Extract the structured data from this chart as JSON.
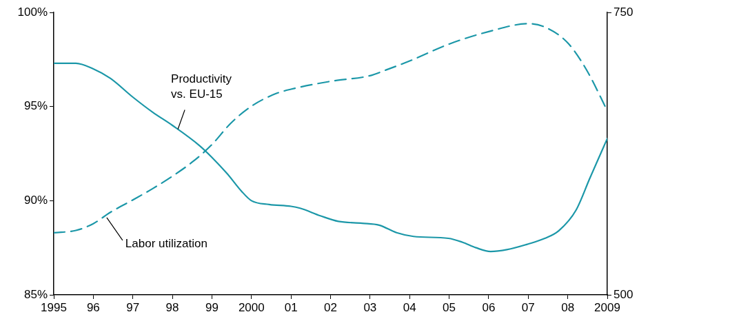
{
  "chart_data": {
    "type": "line",
    "xlim": [
      1995,
      2009
    ],
    "xticks": [
      1995,
      {
        "value": 1996,
        "label": "96"
      },
      {
        "value": 1997,
        "label": "97"
      },
      {
        "value": 1998,
        "label": "98"
      },
      {
        "value": 1999,
        "label": "99"
      },
      2000,
      {
        "value": 2001,
        "label": "01"
      },
      {
        "value": 2002,
        "label": "02"
      },
      {
        "value": 2003,
        "label": "03"
      },
      {
        "value": 2004,
        "label": "04"
      },
      {
        "value": 2005,
        "label": "05"
      },
      {
        "value": 2006,
        "label": "06"
      },
      {
        "value": 2007,
        "label": "07"
      },
      {
        "value": 2008,
        "label": "08"
      },
      2009
    ],
    "ylim": [
      85,
      100
    ],
    "yticks": [
      {
        "value": 85,
        "label": "85%"
      },
      {
        "value": 90,
        "label": "90%"
      },
      {
        "value": 95,
        "label": "95%"
      },
      {
        "value": 100,
        "label": "100%"
      }
    ],
    "y2lim": [
      500,
      750
    ],
    "y2ticks": [
      500,
      750
    ],
    "grid": false,
    "legend": false,
    "marker": "none",
    "series": [
      {
        "color": "#1b97a8",
        "line_style": "solid",
        "axis": "y",
        "x": [
          1995,
          1995.56,
          1996,
          1996.43,
          1997,
          1997.5,
          1998,
          1998.7,
          1999,
          1999.4,
          1999.75,
          2000,
          2000.45,
          2001,
          2001.23,
          2001.74,
          2002.2,
          2002.8,
          2003.23,
          2003.67,
          2004.1,
          2004.98,
          2005.33,
          2005.68,
          2006.05,
          2006.46,
          2007,
          2007.42,
          2007.77,
          2008.21,
          2008.56,
          2009
        ],
        "values": [
          97.3,
          97.3,
          97.0,
          96.5,
          95.5,
          94.7,
          94.0,
          92.9,
          92.3,
          91.4,
          90.5,
          90.0,
          89.8,
          89.7,
          89.6,
          89.2,
          88.9,
          88.8,
          88.7,
          88.3,
          88.1,
          88.0,
          87.8,
          87.5,
          87.3,
          87.4,
          87.7,
          88.0,
          88.4,
          89.5,
          91.2,
          93.3
        ]
      },
      {
        "color": "#1b97a8",
        "line_style": "dashed",
        "axis": "y2",
        "x": [
          1995,
          1995.56,
          1996,
          1996.43,
          1997,
          1997.5,
          1998,
          1998.52,
          1999,
          1999.48,
          2000,
          2000.61,
          2001,
          2002,
          2003,
          2003.4,
          2004,
          2005,
          2006,
          2007,
          2007.42,
          2008,
          2008.46,
          2009
        ],
        "values": [
          555,
          557,
          563,
          573,
          584,
          594,
          605,
          618,
          633,
          652,
          667,
          678,
          682,
          689,
          694,
          699,
          707,
          722,
          733,
          740,
          737,
          723,
          700,
          663
        ]
      }
    ],
    "annotations": [
      {
        "text": "Productivity\nvs. EU-15",
        "x": 1998.14,
        "y": 93.8
      },
      {
        "text": "Labor utilization",
        "x": 1996.34,
        "y": 89.1
      }
    ]
  }
}
